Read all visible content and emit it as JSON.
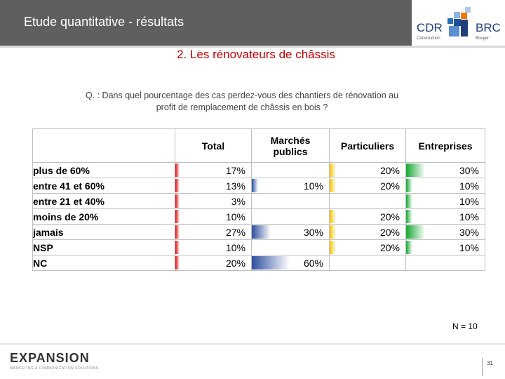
{
  "header": {
    "title": "Etude quantitative - résultats",
    "logo_left": "CDR",
    "logo_left_sub": "Construction",
    "logo_right": "BRC",
    "logo_right_sub": "Bouyer"
  },
  "subtitle": "2. Les rénovateurs de châssis",
  "question": "Q. : Dans quel pourcentage des cas perdez-vous des chantiers de rénovation au profit de remplacement de châssis en bois ?",
  "n_label": "N = 10",
  "footer": {
    "brand": "EXPANSION",
    "tagline": "MARKETING & COMMUNICATION SOLUTIONS",
    "page_number": "31"
  },
  "colors": {
    "Total": "#e00000",
    "Marchés publics": "#2e4fa0",
    "Particuliers": "#f5c400",
    "Entreprises": "#16a830"
  },
  "chart_data": {
    "type": "table",
    "columns": [
      "",
      "Total",
      "Marchés publics",
      "Particuliers",
      "Entreprises"
    ],
    "columns_html": [
      "",
      "Total",
      "Marchés<br>publics",
      "Particuliers",
      "Entreprises"
    ],
    "rows": [
      {
        "label": "plus de 60%",
        "values": [
          17,
          null,
          20,
          30
        ],
        "display": [
          "17%",
          "",
          "20%",
          "30%"
        ]
      },
      {
        "label": "entre 41 et 60%",
        "values": [
          13,
          10,
          20,
          10
        ],
        "display": [
          "13%",
          "10%",
          "20%",
          "10%"
        ]
      },
      {
        "label": "entre 21 et 40%",
        "values": [
          3,
          null,
          null,
          10
        ],
        "display": [
          "3%",
          "",
          "",
          "10%"
        ]
      },
      {
        "label": "moins de 20%",
        "values": [
          10,
          null,
          20,
          10
        ],
        "display": [
          "10%",
          "",
          "20%",
          "10%"
        ]
      },
      {
        "label": "jamais",
        "values": [
          27,
          30,
          20,
          30
        ],
        "display": [
          "27%",
          "30%",
          "20%",
          "30%"
        ]
      },
      {
        "label": "NSP",
        "values": [
          10,
          null,
          20,
          10
        ],
        "display": [
          "10%",
          "",
          "20%",
          "10%"
        ]
      },
      {
        "label": "NC",
        "values": [
          20,
          60,
          null,
          null
        ],
        "display": [
          "20%",
          "60%",
          "",
          ""
        ]
      }
    ]
  }
}
